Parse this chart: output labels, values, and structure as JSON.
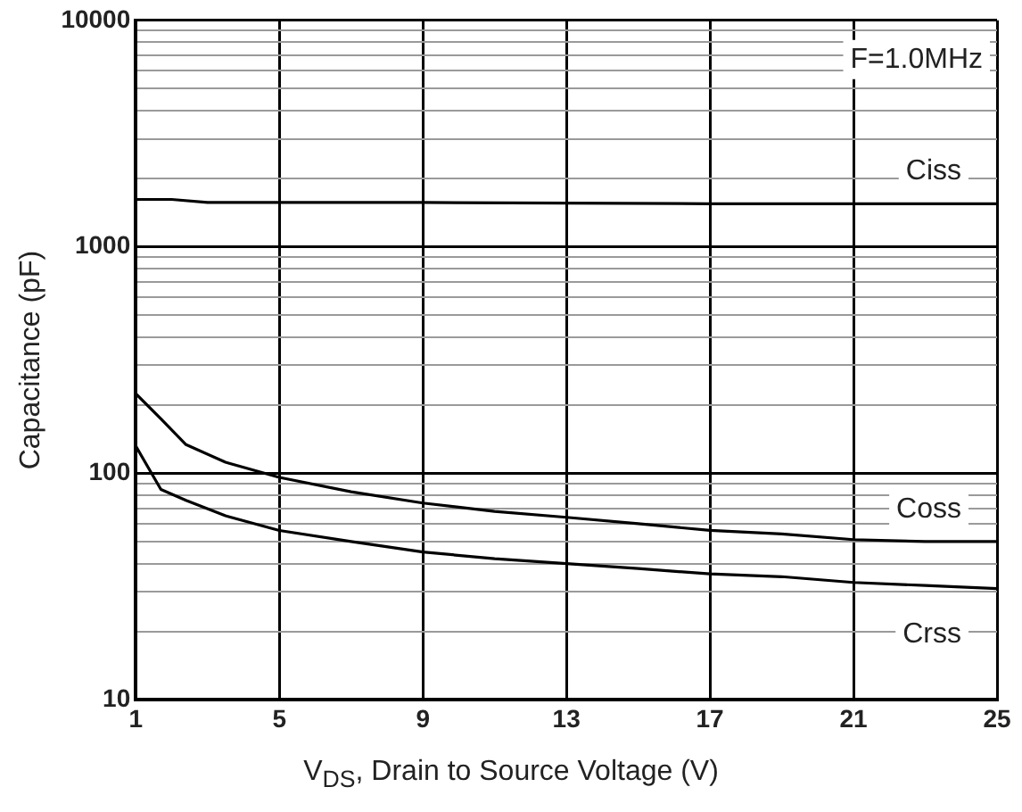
{
  "chart_data": {
    "type": "line",
    "xlabel": "V$_{DS}$, Drain to Source Voltage (V)",
    "ylabel": "Capacitance (pF)",
    "xlim": [
      1,
      25
    ],
    "xticks": [
      1,
      5,
      9,
      13,
      17,
      21,
      25
    ],
    "ylim": [
      10,
      10000
    ],
    "log": "y",
    "yticks": [
      10,
      {
        "value": 20,
        "label": null
      },
      {
        "value": 30,
        "label": null
      },
      {
        "value": 40,
        "label": null
      },
      {
        "value": 50,
        "label": null
      },
      {
        "value": 60,
        "label": null
      },
      {
        "value": 70,
        "label": null
      },
      {
        "value": 80,
        "label": null
      },
      {
        "value": 90,
        "label": null
      },
      100,
      {
        "value": 200,
        "label": null
      },
      {
        "value": 300,
        "label": null
      },
      {
        "value": 400,
        "label": null
      },
      {
        "value": 500,
        "label": null
      },
      {
        "value": 600,
        "label": null
      },
      {
        "value": 700,
        "label": null
      },
      {
        "value": 800,
        "label": null
      },
      {
        "value": 900,
        "label": null
      },
      1000,
      {
        "value": 2000,
        "label": null
      },
      {
        "value": 3000,
        "label": null
      },
      {
        "value": 4000,
        "label": null
      },
      {
        "value": 5000,
        "label": null
      },
      {
        "value": 6000,
        "label": null
      },
      {
        "value": 7000,
        "label": null
      },
      {
        "value": 8000,
        "label": null
      },
      {
        "value": 9000,
        "label": null
      },
      10000
    ],
    "grid": true,
    "legend": false,
    "marker": "none",
    "line_style": "solid",
    "annotations": [
      "F=1.0MHz"
    ],
    "series": [
      {
        "name": "Ciss",
        "color": "#000000",
        "x": [
          1,
          2,
          3,
          5,
          9,
          13,
          17,
          21,
          25
        ],
        "values": [
          1620,
          1620,
          1570,
          1570,
          1570,
          1560,
          1550,
          1550,
          1550
        ]
      },
      {
        "name": "Coss",
        "color": "#000000",
        "x": [
          1,
          1.7,
          2.4,
          3.5,
          5,
          7,
          9,
          11,
          13,
          15,
          17,
          19,
          21,
          23,
          25
        ],
        "values": [
          225,
          174,
          134,
          112,
          96,
          83,
          74,
          68,
          64,
          60,
          56,
          54,
          51,
          50,
          50
        ]
      },
      {
        "name": "Crss",
        "color": "#000000",
        "x": [
          1,
          1.7,
          2.4,
          3.5,
          5,
          7,
          9,
          11,
          13,
          15,
          17,
          19,
          21,
          23,
          25
        ],
        "values": [
          132,
          85,
          76,
          65,
          56,
          50,
          45,
          42,
          40,
          38,
          36,
          35,
          33,
          32,
          31
        ]
      }
    ]
  }
}
